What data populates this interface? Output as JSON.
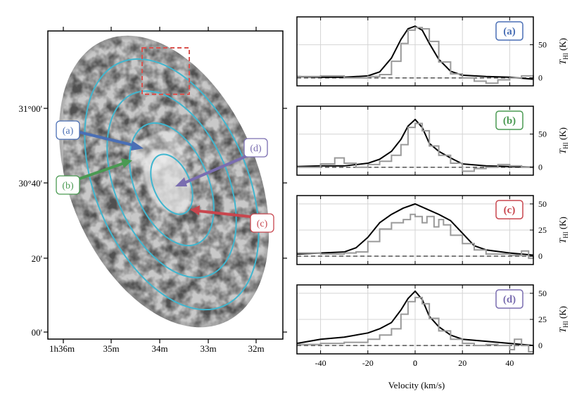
{
  "chart_data": [
    {
      "type": "image-map",
      "xlabel_ticks": [
        "1h36m",
        "35m",
        "34m",
        "33m",
        "32m"
      ],
      "ylabel_ticks": [
        "31°00'",
        "30°40'",
        "20'",
        "00'"
      ],
      "callouts": [
        {
          "label": "(a)",
          "color": "#4a6fb5"
        },
        {
          "label": "(b)",
          "color": "#4a9a52"
        },
        {
          "label": "(c)",
          "color": "#c8464e"
        },
        {
          "label": "(d)",
          "color": "#7a6db0"
        }
      ],
      "ellipse_color": "#3fb6cf",
      "box_color": "#d9534f"
    },
    {
      "type": "line",
      "panel": "(a)",
      "label_color": "#4a6fb5",
      "xlim": [
        -50,
        50
      ],
      "ylim": [
        -12,
        92
      ],
      "yticks": [
        0,
        50
      ],
      "ylabel": "T_HI (K)",
      "series": [
        {
          "name": "smoothed",
          "color": "#000000",
          "x": [
            -50,
            -40,
            -30,
            -20,
            -15,
            -10,
            -6,
            -3,
            0,
            3,
            6,
            10,
            15,
            20,
            30,
            40,
            50
          ],
          "values": [
            2,
            1,
            1,
            3,
            9,
            30,
            58,
            74,
            78,
            72,
            52,
            28,
            10,
            4,
            2,
            1,
            -2
          ]
        },
        {
          "name": "profile",
          "color": "#9a9a9a",
          "x": [
            -50,
            -40,
            -30,
            -20,
            -15,
            -10,
            -6,
            -3,
            0,
            3,
            6,
            10,
            15,
            20,
            25,
            30,
            35,
            40,
            45,
            50
          ],
          "values": [
            2,
            3,
            0,
            2,
            5,
            25,
            52,
            72,
            76,
            74,
            55,
            24,
            6,
            0,
            -5,
            -8,
            -3,
            0,
            3,
            -3
          ]
        }
      ]
    },
    {
      "type": "line",
      "panel": "(b)",
      "label_color": "#4a9a52",
      "xlim": [
        -50,
        50
      ],
      "ylim": [
        -12,
        92
      ],
      "yticks": [
        0,
        50
      ],
      "ylabel": "T_HI (K)",
      "series": [
        {
          "name": "smoothed",
          "color": "#000000",
          "x": [
            -50,
            -40,
            -30,
            -20,
            -15,
            -10,
            -6,
            -3,
            0,
            3,
            6,
            10,
            15,
            20,
            30,
            40,
            50
          ],
          "values": [
            1,
            2,
            2,
            6,
            12,
            24,
            42,
            62,
            72,
            60,
            36,
            24,
            14,
            5,
            2,
            1,
            0
          ]
        },
        {
          "name": "profile",
          "color": "#9a9a9a",
          "x": [
            -50,
            -40,
            -34,
            -30,
            -25,
            -20,
            -15,
            -10,
            -6,
            -3,
            0,
            3,
            6,
            10,
            15,
            20,
            25,
            30,
            35,
            40,
            45,
            50
          ],
          "values": [
            0,
            5,
            14,
            6,
            0,
            4,
            9,
            18,
            34,
            60,
            66,
            55,
            32,
            18,
            6,
            -6,
            -2,
            0,
            4,
            2,
            0,
            2
          ]
        }
      ]
    },
    {
      "type": "line",
      "panel": "(c)",
      "label_color": "#c8464e",
      "xlim": [
        -50,
        50
      ],
      "ylim": [
        -8,
        58
      ],
      "yticks": [
        0,
        25,
        50
      ],
      "ylabel": "T_HI (K)",
      "series": [
        {
          "name": "smoothed",
          "color": "#000000",
          "x": [
            -50,
            -40,
            -30,
            -25,
            -20,
            -15,
            -10,
            -5,
            0,
            5,
            10,
            15,
            20,
            25,
            30,
            40,
            50
          ],
          "values": [
            2,
            3,
            4,
            8,
            18,
            32,
            40,
            46,
            50,
            45,
            40,
            34,
            22,
            10,
            6,
            3,
            1
          ]
        },
        {
          "name": "profile",
          "color": "#9a9a9a",
          "x": [
            -50,
            -40,
            -30,
            -25,
            -20,
            -15,
            -10,
            -5,
            -2,
            0,
            3,
            5,
            8,
            10,
            12,
            15,
            20,
            25,
            30,
            40,
            45,
            48,
            50
          ],
          "values": [
            3,
            2,
            3,
            4,
            14,
            26,
            32,
            35,
            40,
            38,
            32,
            38,
            28,
            35,
            30,
            20,
            12,
            6,
            2,
            1,
            5,
            -2,
            0
          ]
        }
      ]
    },
    {
      "type": "line",
      "panel": "(d)",
      "label_color": "#7a6db0",
      "xlim": [
        -50,
        50
      ],
      "ylim": [
        -8,
        58
      ],
      "yticks": [
        0,
        25,
        50
      ],
      "ylabel": "T_HI (K)",
      "series": [
        {
          "name": "smoothed",
          "color": "#000000",
          "x": [
            -50,
            -40,
            -30,
            -20,
            -15,
            -10,
            -6,
            -3,
            0,
            3,
            6,
            10,
            15,
            20,
            30,
            40,
            50
          ],
          "values": [
            2,
            6,
            8,
            12,
            16,
            22,
            34,
            45,
            52,
            44,
            28,
            18,
            10,
            6,
            4,
            2,
            0
          ]
        },
        {
          "name": "profile",
          "color": "#9a9a9a",
          "x": [
            -50,
            -40,
            -30,
            -20,
            -15,
            -10,
            -6,
            -3,
            0,
            3,
            6,
            10,
            15,
            20,
            25,
            30,
            35,
            40,
            42,
            45,
            48,
            50
          ],
          "values": [
            1,
            2,
            3,
            6,
            10,
            16,
            30,
            42,
            46,
            40,
            26,
            14,
            6,
            2,
            0,
            1,
            0,
            -4,
            6,
            0,
            -6,
            0
          ]
        }
      ]
    },
    {
      "type": "axis",
      "xticks": [
        -40,
        -20,
        0,
        20,
        40
      ],
      "xlabel": "Velocity (km/s)"
    }
  ]
}
